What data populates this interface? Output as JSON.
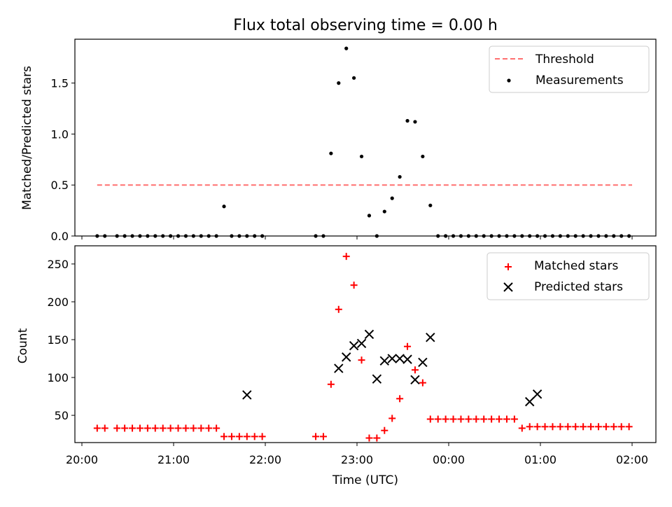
{
  "figure": {
    "title": "Flux total observing time = 0.00 h"
  },
  "colors": {
    "threshold": "#ff7070",
    "matched": "#ff0000",
    "predicted": "#000000",
    "measurement": "#000000"
  },
  "chart_data": [
    {
      "type": "scatter",
      "ylabel": "Matched/Predicted stars",
      "ylim": [
        0,
        1.93
      ],
      "yticks": [
        0.0,
        0.5,
        1.0,
        1.5
      ],
      "ytick_labels": [
        "0.0",
        "0.5",
        "1.0",
        "1.5"
      ],
      "legend_position": "top-right",
      "series": [
        {
          "name": "Threshold",
          "kind": "dashed-line",
          "x": [
            "20:10",
            "02:00"
          ],
          "values": [
            0.5,
            0.5
          ]
        },
        {
          "name": "Measurements",
          "kind": "points",
          "x": [
            "20:10",
            "20:15",
            "20:23",
            "20:28",
            "20:33",
            "20:38",
            "20:43",
            "20:48",
            "20:53",
            "20:58",
            "21:03",
            "21:08",
            "21:13",
            "21:18",
            "21:23",
            "21:28",
            "21:33",
            "21:38",
            "21:43",
            "21:48",
            "21:53",
            "21:58",
            "22:33",
            "22:38",
            "22:43",
            "22:48",
            "22:53",
            "22:58",
            "23:03",
            "23:08",
            "23:13",
            "23:18",
            "23:23",
            "23:28",
            "23:33",
            "23:38",
            "23:43",
            "23:48",
            "23:53",
            "23:58",
            "00:03",
            "00:08",
            "00:13",
            "00:18",
            "00:23",
            "00:28",
            "00:33",
            "00:38",
            "00:43",
            "00:48",
            "00:53",
            "00:58",
            "01:03",
            "01:08",
            "01:13",
            "01:18",
            "01:23",
            "01:28",
            "01:33",
            "01:38",
            "01:43",
            "01:48",
            "01:53",
            "01:58"
          ],
          "values": [
            0,
            0,
            0,
            0,
            0,
            0,
            0,
            0,
            0,
            0,
            0,
            0,
            0,
            0,
            0,
            0,
            0.29,
            0,
            0,
            0,
            0,
            0,
            0,
            0,
            0.81,
            1.5,
            1.84,
            1.55,
            0.78,
            0.2,
            0,
            0.24,
            0.37,
            0.58,
            1.13,
            1.12,
            0.78,
            0.3,
            0,
            0,
            0,
            0,
            0,
            0,
            0,
            0,
            0,
            0,
            0,
            0,
            0,
            0,
            0,
            0,
            0,
            0,
            0,
            0,
            0,
            0,
            0,
            0,
            0,
            0
          ]
        }
      ]
    },
    {
      "type": "scatter",
      "xlabel": "Time (UTC)",
      "ylabel": "Count",
      "ylim": [
        14,
        274
      ],
      "yticks": [
        50,
        100,
        150,
        200,
        250
      ],
      "ytick_labels": [
        "50",
        "100",
        "150",
        "200",
        "250"
      ],
      "xlim": [
        "20:00",
        "02:00"
      ],
      "xticks": [
        "20:00",
        "21:00",
        "22:00",
        "23:00",
        "00:00",
        "01:00",
        "02:00"
      ],
      "legend_position": "top-right",
      "series": [
        {
          "name": "Matched stars",
          "kind": "plus",
          "x": [
            "20:10",
            "20:15",
            "20:23",
            "20:28",
            "20:33",
            "20:38",
            "20:43",
            "20:48",
            "20:53",
            "20:58",
            "21:03",
            "21:08",
            "21:13",
            "21:18",
            "21:23",
            "21:28",
            "21:33",
            "21:38",
            "21:43",
            "21:48",
            "21:53",
            "21:58",
            "22:33",
            "22:38",
            "22:43",
            "22:48",
            "22:53",
            "22:58",
            "23:03",
            "23:08",
            "23:13",
            "23:18",
            "23:23",
            "23:28",
            "23:33",
            "23:38",
            "23:43",
            "23:48",
            "23:53",
            "23:58",
            "00:03",
            "00:08",
            "00:13",
            "00:18",
            "00:23",
            "00:28",
            "00:33",
            "00:38",
            "00:43",
            "00:48",
            "00:53",
            "00:58",
            "01:03",
            "01:08",
            "01:13",
            "01:18",
            "01:23",
            "01:28",
            "01:33",
            "01:38",
            "01:43",
            "01:48",
            "01:53",
            "01:58"
          ],
          "values": [
            33,
            33,
            33,
            33,
            33,
            33,
            33,
            33,
            33,
            33,
            33,
            33,
            33,
            33,
            33,
            33,
            22,
            22,
            22,
            22,
            22,
            22,
            22,
            22,
            91,
            190,
            260,
            222,
            123,
            20,
            20,
            30,
            46,
            72,
            141,
            110,
            93,
            45,
            45,
            45,
            45,
            45,
            45,
            45,
            45,
            45,
            45,
            45,
            45,
            33,
            35,
            35,
            35,
            35,
            35,
            35,
            35,
            35,
            35,
            35,
            35,
            35,
            35,
            35
          ]
        },
        {
          "name": "Predicted stars",
          "kind": "cross",
          "x": [
            "21:48",
            "22:48",
            "22:53",
            "22:58",
            "23:03",
            "23:08",
            "23:13",
            "23:18",
            "23:23",
            "23:28",
            "23:33",
            "23:38",
            "23:43",
            "23:48",
            "00:53",
            "00:58"
          ],
          "values": [
            77,
            112,
            127,
            142,
            145,
            157,
            98,
            122,
            125,
            125,
            124,
            97,
            120,
            153,
            68,
            78
          ]
        }
      ]
    }
  ]
}
